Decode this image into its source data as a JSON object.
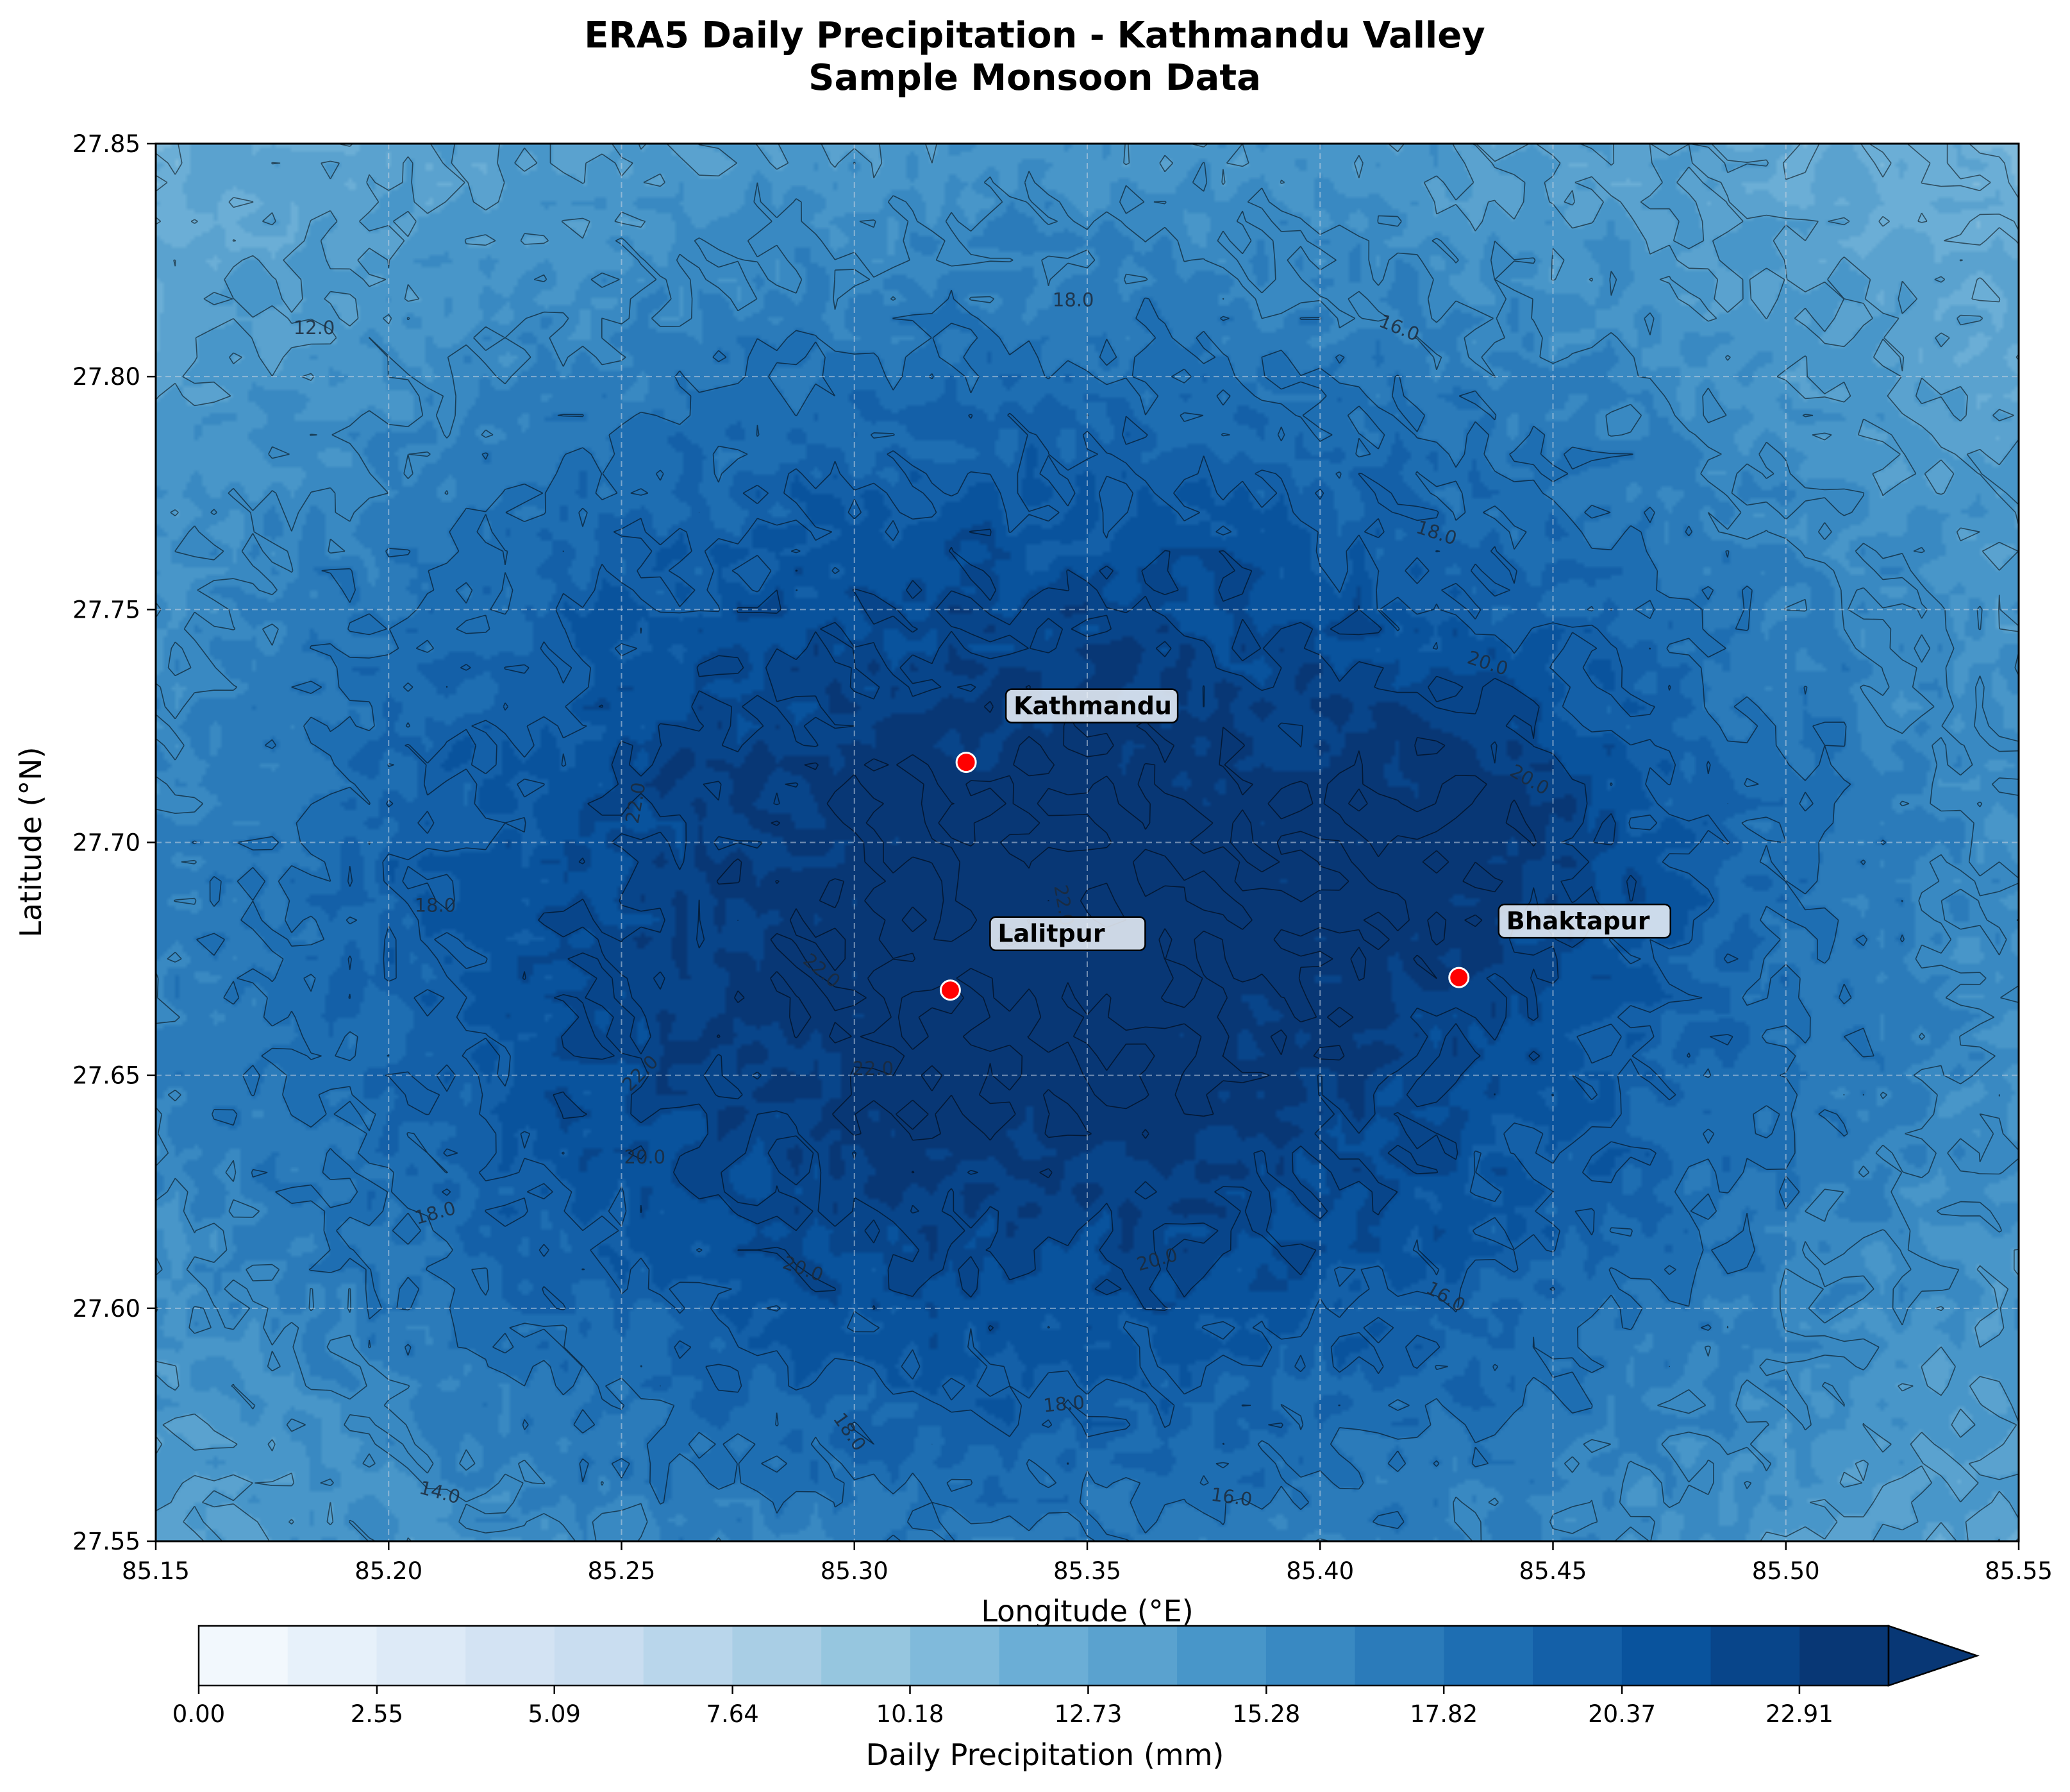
{
  "chart_data": {
    "type": "contour",
    "title": "ERA5 Daily Precipitation - Kathmandu Valley",
    "subtitle": "Sample Monsoon Data",
    "xlabel": "Longitude (°E)",
    "ylabel": "Latitude (°N)",
    "xlim": [
      85.15,
      85.55
    ],
    "ylim": [
      27.55,
      27.85
    ],
    "xticks": [
      "85.15",
      "85.20",
      "85.25",
      "85.30",
      "85.35",
      "85.40",
      "85.45",
      "85.50",
      "85.55"
    ],
    "yticks": [
      "27.55",
      "27.60",
      "27.65",
      "27.70",
      "27.75",
      "27.80",
      "27.85"
    ],
    "grid": true,
    "field": {
      "center": [
        85.34,
        27.68
      ],
      "peak_mm": 24.5,
      "edge_mm": 10.0,
      "secondary_center": [
        85.435,
        27.705
      ],
      "secondary_peak_mm": 20.5
    },
    "contour_levels": [
      12,
      14,
      16,
      18,
      20,
      22,
      24
    ],
    "contour_labels": [
      {
        "text": "12.0",
        "lon": 85.184,
        "lat": 27.8105,
        "angle": 0
      },
      {
        "text": "18.0",
        "lon": 85.347,
        "lat": 27.8165,
        "angle": 0
      },
      {
        "text": "16.0",
        "lon": 85.417,
        "lat": 27.8105,
        "angle": 22
      },
      {
        "text": "18.0",
        "lon": 85.425,
        "lat": 27.7665,
        "angle": 18
      },
      {
        "text": "20.0",
        "lon": 85.436,
        "lat": 27.7385,
        "angle": 18
      },
      {
        "text": "20.0",
        "lon": 85.445,
        "lat": 27.7135,
        "angle": 30
      },
      {
        "text": "22.0",
        "lon": 85.253,
        "lat": 27.7085,
        "angle": -80
      },
      {
        "text": "22.0",
        "lon": 85.345,
        "lat": 27.6865,
        "angle": 80
      },
      {
        "text": "22.0",
        "lon": 85.293,
        "lat": 27.6725,
        "angle": 40
      },
      {
        "text": "18.0",
        "lon": 85.21,
        "lat": 27.6865,
        "angle": 0
      },
      {
        "text": "22.0",
        "lon": 85.254,
        "lat": 27.6505,
        "angle": -45
      },
      {
        "text": "22.0",
        "lon": 85.304,
        "lat": 27.6515,
        "angle": 0
      },
      {
        "text": "20.0",
        "lon": 85.255,
        "lat": 27.6325,
        "angle": 0
      },
      {
        "text": "18.0",
        "lon": 85.21,
        "lat": 27.6205,
        "angle": -15
      },
      {
        "text": "20.0",
        "lon": 85.289,
        "lat": 27.6085,
        "angle": 20
      },
      {
        "text": "20.0",
        "lon": 85.365,
        "lat": 27.6105,
        "angle": -15
      },
      {
        "text": "16.0",
        "lon": 85.427,
        "lat": 27.6025,
        "angle": 30
      },
      {
        "text": "18.0",
        "lon": 85.345,
        "lat": 27.5795,
        "angle": -5
      },
      {
        "text": "18.0",
        "lon": 85.299,
        "lat": 27.5735,
        "angle": 55
      },
      {
        "text": "16.0",
        "lon": 85.381,
        "lat": 27.5595,
        "angle": 8
      },
      {
        "text": "14.0",
        "lon": 85.211,
        "lat": 27.5605,
        "angle": 15
      }
    ],
    "cities": [
      {
        "name": "Kathmandu",
        "lon": 85.324,
        "lat": 27.7172
      },
      {
        "name": "Lalitpur",
        "lon": 85.3206,
        "lat": 27.6683
      },
      {
        "name": "Bhaktapur",
        "lon": 85.4298,
        "lat": 27.671
      }
    ],
    "colorbar": {
      "label": "Daily Precipitation (mm)",
      "min": 0.0,
      "max": 24.186,
      "n_bins": 19,
      "extend": "max",
      "ticks": [
        "0.00",
        "2.55",
        "5.09",
        "7.64",
        "10.18",
        "12.73",
        "15.28",
        "17.82",
        "20.37",
        "22.91"
      ],
      "tick_values": [
        0.0,
        2.55,
        5.09,
        7.64,
        10.18,
        12.73,
        15.28,
        17.82,
        20.37,
        22.91
      ],
      "cmap": "Blues",
      "cmap_stops": [
        "#f7fbff",
        "#deebf7",
        "#c6dbef",
        "#9ecae1",
        "#6baed6",
        "#4292c6",
        "#2171b5",
        "#08519c",
        "#08306b"
      ]
    }
  }
}
